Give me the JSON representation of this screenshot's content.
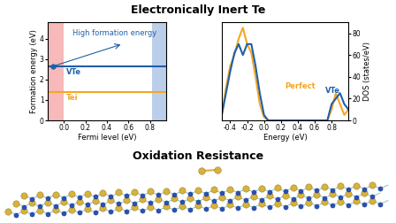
{
  "header": {
    "title": "Electronically Inert Te",
    "caption": "Oxidation Resistance"
  },
  "chart_data": [
    {
      "type": "line",
      "x_label": "Fermi level (eV)",
      "y_label": "Formation energy (eV)",
      "xlim": [
        -0.15,
        0.95
      ],
      "ylim": [
        0,
        4.8
      ],
      "xticks": [
        0.0,
        0.2,
        0.4,
        0.6,
        0.8
      ],
      "yticks": [
        0,
        1,
        2,
        3,
        4
      ],
      "series": [
        {
          "name": "VTe",
          "color": "#1f5fa8",
          "x": [
            -0.15,
            0.95
          ],
          "values": [
            2.65,
            2.65
          ]
        },
        {
          "name": "Tei",
          "color": "#f5a623",
          "x": [
            -0.15,
            0.95
          ],
          "values": [
            1.4,
            1.4
          ]
        }
      ],
      "bands": [
        {
          "range": [
            -0.15,
            0.0
          ],
          "color": "#f28b8b"
        },
        {
          "range": [
            0.82,
            0.95
          ],
          "color": "#8fb0dc"
        }
      ],
      "annotation": {
        "text": "High formation energy",
        "xy": [
          -0.1,
          2.65
        ]
      }
    },
    {
      "type": "line",
      "x_label": "Energy (eV)",
      "y_label": "DOS (states/eV)",
      "xlim": [
        -0.5,
        1.0
      ],
      "ylim": [
        0,
        90
      ],
      "xticks": [
        -0.4,
        -0.2,
        0.0,
        0.2,
        0.4,
        0.6,
        0.8
      ],
      "yticks": [
        0,
        20,
        40,
        60,
        80
      ],
      "x": [
        -0.5,
        -0.45,
        -0.4,
        -0.35,
        -0.3,
        -0.25,
        -0.2,
        -0.15,
        -0.1,
        -0.05,
        0.0,
        0.05,
        0.1,
        0.2,
        0.3,
        0.4,
        0.5,
        0.6,
        0.7,
        0.75,
        0.8,
        0.85,
        0.9,
        0.95,
        1.0
      ],
      "series": [
        {
          "name": "Perfect",
          "color": "#f5a623",
          "values": [
            5,
            30,
            50,
            60,
            75,
            85,
            70,
            62,
            40,
            15,
            3,
            0,
            0,
            0,
            0,
            0,
            0,
            0,
            0,
            0,
            10,
            25,
            15,
            5,
            10
          ]
        },
        {
          "name": "VTe",
          "color": "#1f5fa8",
          "values": [
            5,
            25,
            45,
            62,
            70,
            60,
            70,
            70,
            50,
            25,
            5,
            0,
            0,
            0,
            0,
            0,
            0,
            0,
            0,
            0,
            15,
            20,
            25,
            15,
            10
          ]
        }
      ]
    }
  ]
}
